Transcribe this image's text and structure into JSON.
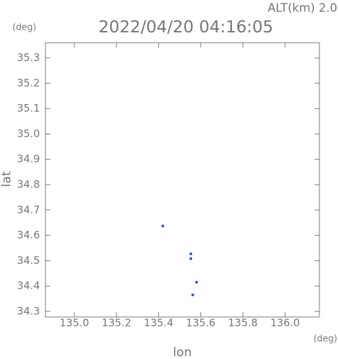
{
  "chart_data": {
    "type": "scatter",
    "title": "2022/04/20 04:16:05",
    "annotation": "ALT(km) 2.0",
    "y_unit": "(deg)",
    "x_unit": "(deg)",
    "xlabel": "lon",
    "ylabel": "lat",
    "color": "#2f4fe0",
    "x": [
      135.42,
      135.553,
      135.553,
      135.58,
      135.562
    ],
    "values": [
      34.637,
      34.527,
      34.508,
      34.415,
      34.365
    ],
    "xlim": [
      134.863,
      136.163
    ],
    "ylim": [
      34.278,
      35.36
    ],
    "xticks": [
      {
        "value": 135.0,
        "label": "135.0"
      },
      135.2,
      135.4,
      135.6,
      135.8,
      {
        "value": 136.0,
        "label": "136.0"
      }
    ],
    "yticks": [
      35.3,
      35.2,
      35.1,
      {
        "value": 35.0,
        "label": "35.0"
      },
      34.9,
      34.8,
      34.7,
      34.6,
      34.5,
      34.4,
      34.3
    ]
  }
}
